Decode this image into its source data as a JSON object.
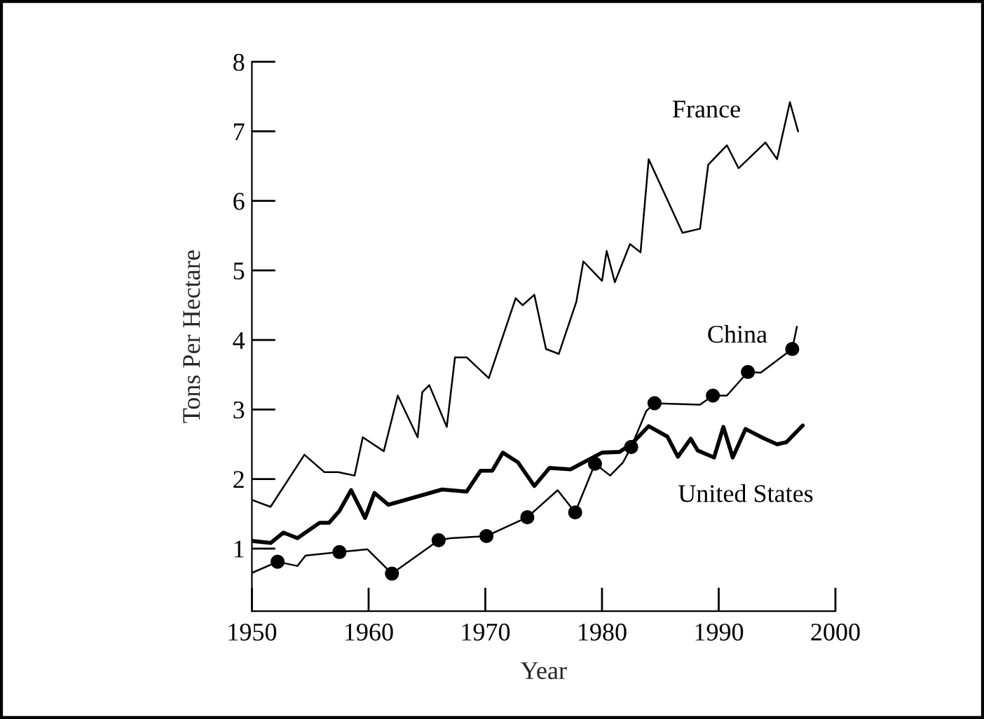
{
  "chart_data": {
    "type": "line",
    "xlabel": "Year",
    "ylabel": "Tons Per Hectare",
    "xlim": [
      1950,
      2000
    ],
    "xticks": [
      1950,
      1960,
      1970,
      1980,
      1990,
      2000
    ],
    "ylim": [
      0.1,
      8
    ],
    "yticks": [
      1,
      2,
      3,
      4,
      5,
      6,
      7,
      8
    ],
    "grid": false,
    "legend": false,
    "marker": "none",
    "series": [
      {
        "name": "France",
        "color": "#000000",
        "x": [
          1950,
          1951.6,
          1954.5,
          1956.2,
          1957.4,
          1958.8,
          1959.5,
          1961.3,
          1962.5,
          1964.2,
          1964.6,
          1965.2,
          1966.7,
          1967.4,
          1968.4,
          1970.3,
          1972.6,
          1973.2,
          1974.2,
          1975.2,
          1976.3,
          1977.8,
          1978.4,
          1980,
          1980.4,
          1981.1,
          1982.4,
          1983.3,
          1984,
          1986.9,
          1988.4,
          1989.1,
          1990.7,
          1991.7,
          1994,
          1995,
          1996.1,
          1996.8
        ],
        "values": [
          1.7,
          1.6,
          2.35,
          2.1,
          2.1,
          2.05,
          2.6,
          2.4,
          3.2,
          2.6,
          3.25,
          3.35,
          2.75,
          3.75,
          3.75,
          3.45,
          4.6,
          4.5,
          4.65,
          3.87,
          3.8,
          4.55,
          5.13,
          4.85,
          5.28,
          4.83,
          5.38,
          5.26,
          6.6,
          5.54,
          5.6,
          6.52,
          6.8,
          6.47,
          6.84,
          6.6,
          7.42,
          7.0
        ]
      },
      {
        "name": "China",
        "color": "#000000",
        "x": [
          1950,
          1952.2,
          1953.9,
          1954.6,
          1957.5,
          1959.9,
          1962,
          1966,
          1967,
          1970.1,
          1973.6,
          1976.2,
          1977.7,
          1979.4,
          1980.7,
          1981.8,
          1982.5,
          1983.8,
          1984.5,
          1988.4,
          1989.5,
          1990.7,
          1992.5,
          1993.6,
          1996.3,
          1996.7
        ],
        "values": [
          0.65,
          0.81,
          0.75,
          0.9,
          0.95,
          0.99,
          0.64,
          1.12,
          1.15,
          1.18,
          1.45,
          1.84,
          1.52,
          2.22,
          2.05,
          2.24,
          2.46,
          2.98,
          3.09,
          3.07,
          3.2,
          3.2,
          3.54,
          3.53,
          3.87,
          4.19
        ]
      },
      {
        "type": "scatter",
        "marker": "circle",
        "color": "#000000",
        "x": [
          1952.2,
          1957.5,
          1962,
          1966,
          1970.1,
          1973.6,
          1977.7,
          1979.4,
          1982.5,
          1984.5,
          1989.5,
          1992.5,
          1996.3
        ],
        "values": [
          0.81,
          0.95,
          0.64,
          1.12,
          1.18,
          1.45,
          1.52,
          2.22,
          2.46,
          3.09,
          3.2,
          3.54,
          3.87
        ]
      },
      {
        "name": "United States",
        "color": "#000000",
        "x": [
          1950,
          1951.6,
          1952.7,
          1953.9,
          1955.8,
          1956.6,
          1957.5,
          1958.5,
          1959.7,
          1960.5,
          1961.7,
          1966.3,
          1968.4,
          1969.6,
          1970.6,
          1971.5,
          1972.8,
          1974.2,
          1975.5,
          1977.3,
          1980,
          1981.5,
          1982.5,
          1984,
          1985.6,
          1986.5,
          1987.6,
          1988.2,
          1989.6,
          1990.4,
          1991.2,
          1992.3,
          1993.8,
          1995,
          1995.8,
          1997.2
        ],
        "values": [
          1.11,
          1.08,
          1.23,
          1.15,
          1.37,
          1.37,
          1.54,
          1.84,
          1.44,
          1.8,
          1.63,
          1.85,
          1.82,
          2.12,
          2.12,
          2.38,
          2.24,
          1.9,
          2.16,
          2.14,
          2.38,
          2.39,
          2.5,
          2.76,
          2.61,
          2.32,
          2.58,
          2.41,
          2.31,
          2.75,
          2.31,
          2.72,
          2.59,
          2.5,
          2.53,
          2.77
        ]
      }
    ]
  }
}
